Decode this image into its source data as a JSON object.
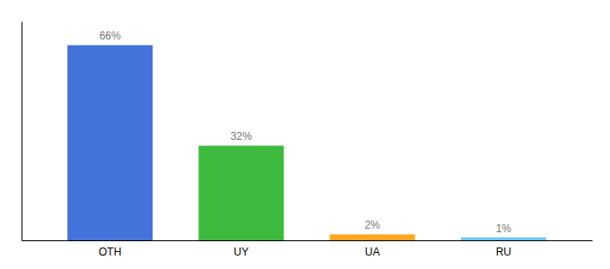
{
  "chart_data": {
    "type": "bar",
    "categories": [
      "OTH",
      "UY",
      "UA",
      "RU"
    ],
    "values": [
      66,
      32,
      2,
      1
    ],
    "value_labels": [
      "66%",
      "32%",
      "2%",
      "1%"
    ],
    "data_labels": true,
    "colors": [
      "#4472db",
      "#3dba3d",
      "#ffa520",
      "#6ec6f0"
    ],
    "ylim": [
      0,
      74
    ],
    "yticks": [],
    "tick_labels": "x",
    "grid": false
  }
}
